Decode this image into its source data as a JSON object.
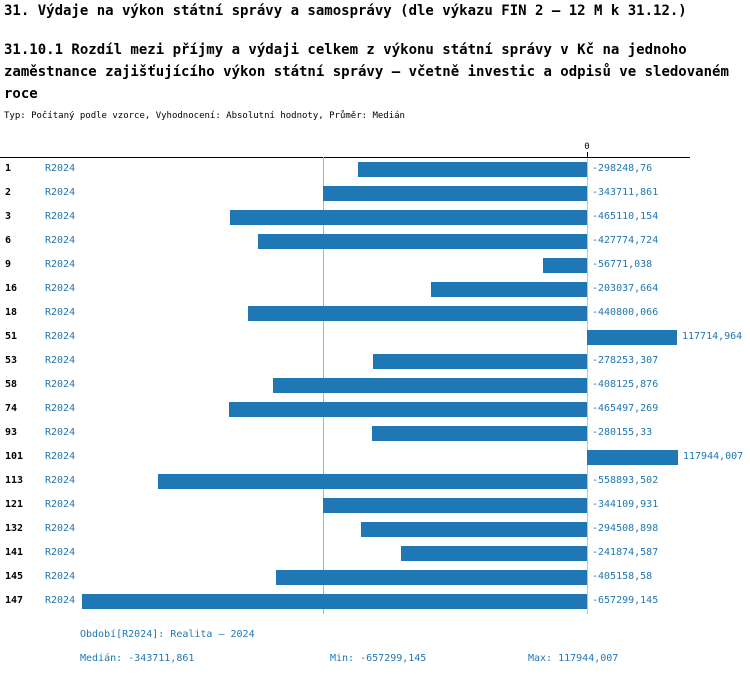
{
  "title": "31. Výdaje na výkon státní správy a samosprávy (dle výkazu FIN 2 – 12 M k 31.12.)",
  "subtitle": "31.10.1 Rozdíl mezi příjmy a výdaji celkem z výkonu státní správy v Kč na jednoho zaměstnance zajišťujícího výkon státní správy – včetně investic a odpisů ve sledovaném roce",
  "meta_line": "Typ: Počítaný podle vzorce, Vyhodnocení: Absolutní hodnoty, Průměr: Medián",
  "colors": {
    "bar": "#1f77b4",
    "accent_text": "#1f77b4",
    "median_line": "#8abbd7",
    "axis": "#000000"
  },
  "chart_data": {
    "type": "bar",
    "orientation": "horizontal",
    "zero_label": "0",
    "series_label": "R2024",
    "axis_range": [
      -657299.145,
      117944.007
    ],
    "median_line_value": -343711.861,
    "categories": [
      "1",
      "2",
      "3",
      "6",
      "9",
      "16",
      "18",
      "51",
      "53",
      "58",
      "74",
      "93",
      "101",
      "113",
      "121",
      "132",
      "141",
      "145",
      "147"
    ],
    "values": [
      -298248.76,
      -343711.861,
      -465110.154,
      -427774.724,
      -56771.038,
      -203037.664,
      -440800.066,
      117714.964,
      -278253.307,
      -408125.876,
      -465497.269,
      -280155.33,
      117944.007,
      -558893.502,
      -344109.931,
      -294508.898,
      -241874.587,
      -405158.58,
      -657299.145
    ],
    "value_labels": [
      "-298248,76",
      "-343711,861",
      "-465110,154",
      "-427774,724",
      "-56771,038",
      "-203037,664",
      "-440800,066",
      "117714,964",
      "-278253,307",
      "-408125,876",
      "-465497,269",
      "-280155,33",
      "117944,007",
      "-558893,502",
      "-344109,931",
      "-294508,898",
      "-241874,587",
      "-405158,58",
      "-657299,145"
    ],
    "title": "31.10.1 Rozdíl mezi příjmy a výdaji celkem z výkonu státní správy v Kč na jednoho zaměstnance zajišťujícího výkon státní správy – včetně investic a odpisů ve sledovaném roce",
    "xlabel": "",
    "ylabel": "",
    "legend_position": "none",
    "grid": false
  },
  "footer": {
    "period": "Období[R2024]: Realita – 2024",
    "median": "Medián: -343711,861",
    "min": "Min: -657299,145",
    "max": "Max: 117944,007"
  }
}
